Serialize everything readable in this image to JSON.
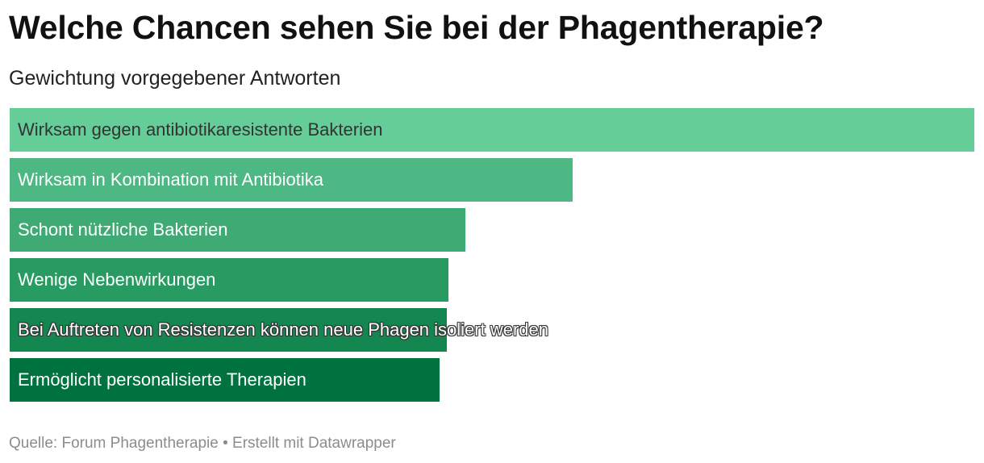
{
  "header": {
    "title": "Welche Chancen sehen Sie bei der Phagentherapie?",
    "subtitle": "Gewichtung vorgegebener Antworten"
  },
  "footer": {
    "text": "Quelle: Forum Phagentherapie • Erstellt mit Datawrapper"
  },
  "chart_data": {
    "type": "bar",
    "orientation": "horizontal",
    "title": "Welche Chancen sehen Sie bei der Phagentherapie?",
    "subtitle": "Gewichtung vorgegebener Antworten",
    "categories": [
      "Wirksam gegen antibiotikaresistente Bakterien",
      "Wirksam in Kombination mit Antibiotika",
      "Schont nützliche Bakterien",
      "Wenige Nebenwirkungen",
      "Bei Auftreten von Resistenzen können neue Phagen isoliert werden",
      "Ermöglicht personalisierte Therapien"
    ],
    "values": [
      100,
      58.4,
      47.2,
      45.5,
      45.3,
      44.6
    ],
    "colors": [
      "#65cd98",
      "#4db884",
      "#40aa75",
      "#279b62",
      "#148650",
      "#00723f"
    ],
    "label_styles": [
      "dark",
      "light",
      "light",
      "light",
      "halo",
      "light"
    ],
    "grid": false,
    "legend": "none"
  }
}
